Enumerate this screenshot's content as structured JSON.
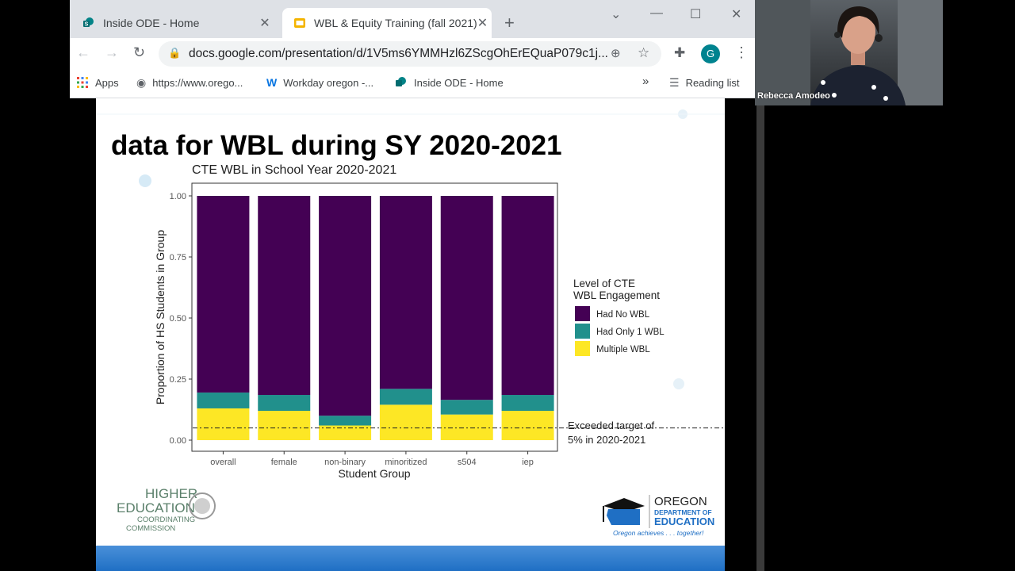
{
  "browser": {
    "tabs": [
      {
        "title": "Inside ODE - Home",
        "active": false
      },
      {
        "title": "WBL & Equity Training (fall 2021)",
        "active": true
      }
    ],
    "url": "docs.google.com/presentation/d/1V5ms6YMMHzl6ZScgOhErEQuaP079c1j...",
    "profile_initial": "G",
    "bookmarks": [
      "Apps",
      "https://www.orego...",
      "Workday oregon -...",
      "Inside ODE - Home"
    ],
    "bookmarks_overflow": "»",
    "reading_list": "Reading list"
  },
  "webcam": {
    "participant_name": "Rebecca Amodeo"
  },
  "slide": {
    "title": "data for WBL during SY 2020-2021",
    "annotation": "Exceeded target of 5% in 2020-2021",
    "logo_left": {
      "line1": "HIGHER",
      "line2": "EDUCATION",
      "line3": "COORDINATING",
      "line4": "COMMISSION"
    },
    "logo_right": {
      "line1": "OREGON",
      "line2": "DEPARTMENT OF",
      "line3": "EDUCATION",
      "tagline": "Oregon achieves . . . together!"
    }
  },
  "colors": {
    "had_no_wbl": "#440154",
    "had_only_1_wbl": "#21908c",
    "multiple_wbl": "#fde725"
  },
  "chart_data": {
    "type": "bar",
    "stacked": true,
    "title": "CTE WBL in School Year 2020-2021",
    "xlabel": "Student Group",
    "ylabel": "Proportion of HS Students in Group",
    "ylim": [
      0,
      1
    ],
    "yticks": [
      "0.00",
      "0.25",
      "0.50",
      "0.75",
      "1.00"
    ],
    "categories": [
      "overall",
      "female",
      "non-binary",
      "minoritized",
      "s504",
      "iep"
    ],
    "legend_title": "Level of CTE WBL Engagement",
    "legend_position": "right",
    "series": [
      {
        "name": "Multiple WBL",
        "values": [
          0.13,
          0.12,
          0.06,
          0.145,
          0.105,
          0.12
        ]
      },
      {
        "name": "Had Only 1 WBL",
        "values": [
          0.065,
          0.065,
          0.04,
          0.065,
          0.06,
          0.065
        ]
      },
      {
        "name": "Had No WBL",
        "values": [
          0.805,
          0.815,
          0.9,
          0.79,
          0.835,
          0.815
        ]
      }
    ],
    "reference_line": {
      "y": 0.05,
      "style": "dash-dot"
    }
  }
}
